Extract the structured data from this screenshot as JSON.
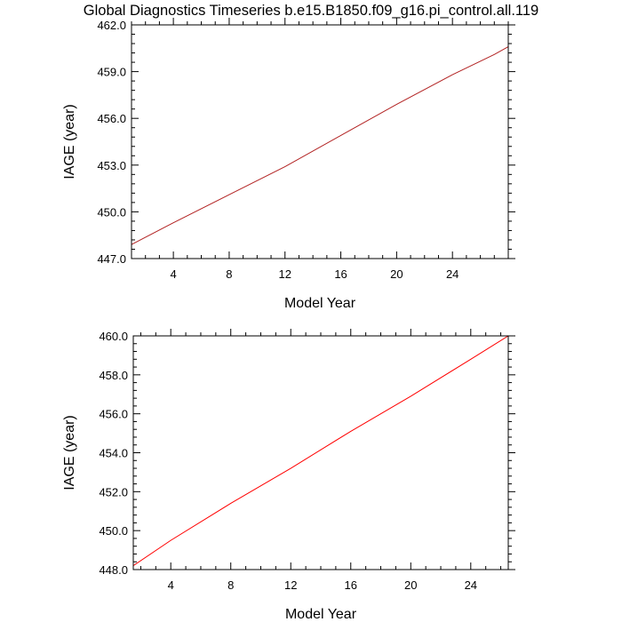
{
  "title": "Global Diagnostics Timeseries b.e15.B1850.f09_g16.pi_control.all.119",
  "chart_data": [
    {
      "type": "line",
      "xlabel": "Model Year",
      "ylabel": "IAGE (year)",
      "xlim": [
        1,
        28
      ],
      "ylim": [
        447.0,
        462.0
      ],
      "xticks": [
        4,
        8,
        12,
        16,
        20,
        24
      ],
      "xtick_labels": [
        "4",
        "8",
        "12",
        "16",
        "20",
        "24"
      ],
      "yticks": [
        447.0,
        450.0,
        453.0,
        456.0,
        459.0,
        462.0
      ],
      "ytick_labels": [
        "447.0",
        "450.0",
        "453.0",
        "456.0",
        "459.0",
        "462.0"
      ],
      "grid": false,
      "series": [
        {
          "color": "#b22222",
          "x": [
            1,
            4,
            8,
            12,
            16,
            20,
            24,
            27,
            28
          ],
          "y": [
            447.9,
            449.3,
            451.1,
            452.9,
            454.9,
            456.9,
            458.8,
            460.1,
            460.6
          ]
        }
      ]
    },
    {
      "type": "line",
      "xlabel": "Model Year",
      "ylabel": "IAGE (year)",
      "xlim": [
        1.5,
        26.5
      ],
      "ylim": [
        448.0,
        460.0
      ],
      "xticks": [
        4,
        8,
        12,
        16,
        20,
        24
      ],
      "xtick_labels": [
        "4",
        "8",
        "12",
        "16",
        "20",
        "24"
      ],
      "yticks": [
        448.0,
        450.0,
        452.0,
        454.0,
        456.0,
        458.0,
        460.0
      ],
      "ytick_labels": [
        "448.0",
        "450.0",
        "452.0",
        "454.0",
        "456.0",
        "458.0",
        "460.0"
      ],
      "grid": false,
      "series": [
        {
          "color": "#ff0000",
          "x": [
            1.5,
            4,
            8,
            12,
            16,
            20,
            24,
            26.5
          ],
          "y": [
            448.2,
            449.5,
            451.4,
            453.2,
            455.1,
            456.9,
            458.8,
            460.0
          ]
        }
      ]
    }
  ]
}
